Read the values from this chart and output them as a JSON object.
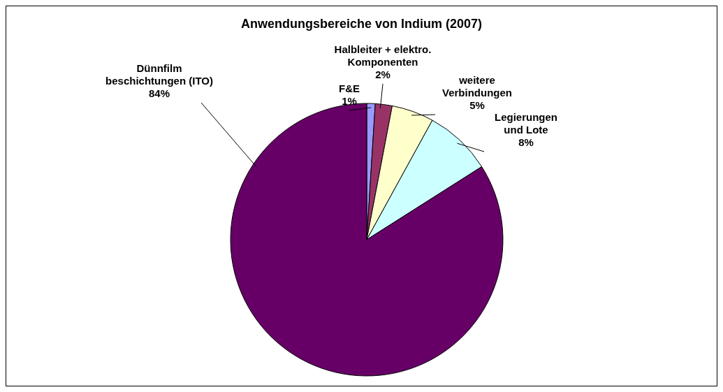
{
  "chart_data": {
    "type": "pie",
    "title": "Anwendungsbereiche von Indium (2007)",
    "categories": [
      "F&E",
      "Halbleiter + elektro.\nKomponenten",
      "weitere\nVerbindungen",
      "Legierungen\nund Lote",
      "Dünnfilm\nbeschichtungen (ITO)"
    ],
    "values": [
      1,
      2,
      5,
      8,
      84
    ],
    "value_labels": [
      "1%",
      "2%",
      "5%",
      "8%",
      "84%"
    ],
    "colors": [
      "#9999ff",
      "#993366",
      "#ffffcc",
      "#ccffff",
      "#660066"
    ]
  }
}
